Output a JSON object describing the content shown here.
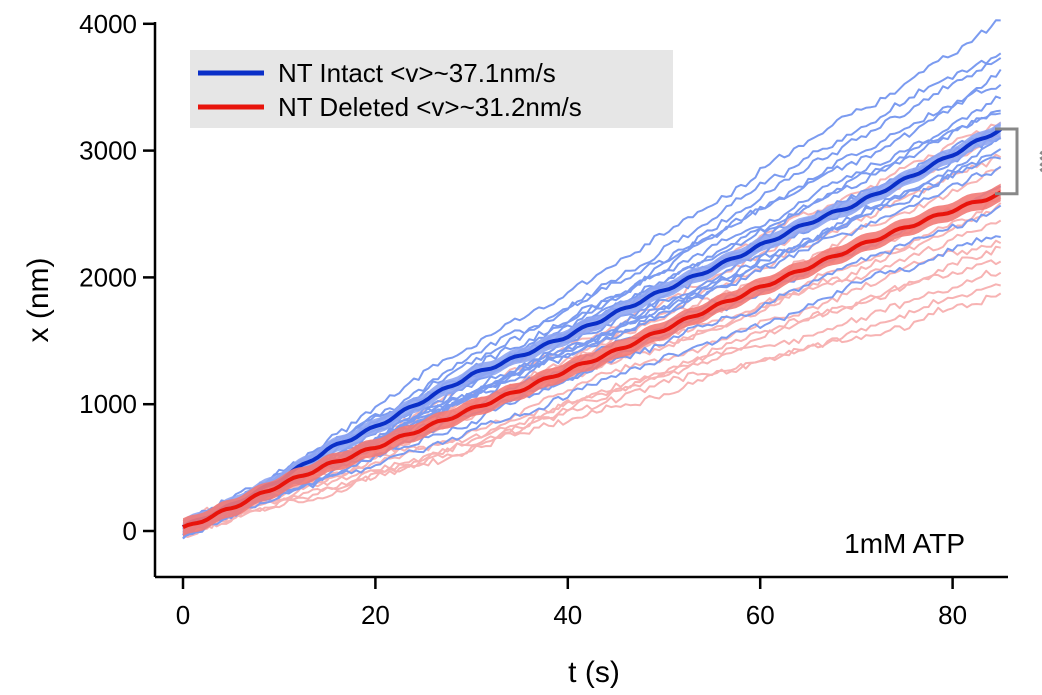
{
  "chart_data": {
    "type": "line",
    "title": "",
    "xlabel": "t (s)",
    "ylabel": "x (nm)",
    "xlim": [
      0,
      85
    ],
    "ylim": [
      -300,
      4000
    ],
    "x_ticks": [
      0,
      20,
      40,
      60,
      80
    ],
    "y_ticks": [
      0,
      1000,
      2000,
      3000,
      4000
    ],
    "x_tick_labels": [
      "0",
      "20",
      "40",
      "60",
      "80"
    ],
    "y_tick_labels": [
      "0",
      "1000",
      "2000",
      "3000",
      "4000"
    ],
    "grid": false,
    "legend_position": "top-left",
    "annotation": "1mM ATP",
    "significance": "**",
    "series": [
      {
        "name": "NT Intact <v>~37.1nm/s",
        "color": "#0a2fc8",
        "trace_color": "#7b9bf0",
        "band_color": "#8fa6f2",
        "velocity_nm_per_s": 37.1,
        "mean_x": [
          0,
          5,
          10,
          15,
          20,
          25,
          30,
          35,
          40,
          45,
          50,
          55,
          60,
          65,
          70,
          75,
          80,
          85
        ],
        "mean_y": [
          30,
          200,
          400,
          640,
          820,
          1030,
          1230,
          1380,
          1540,
          1720,
          1900,
          2070,
          2250,
          2430,
          2580,
          2770,
          2970,
          3170
        ],
        "sem": 60,
        "trace_endpoints": [
          4020,
          3780,
          3700,
          3600,
          3550,
          3450,
          3400,
          3320,
          3250,
          3180,
          3100,
          3050,
          3000,
          2950,
          2850,
          2750,
          2650,
          2550,
          2330
        ]
      },
      {
        "name": "NT Deleted <v>~31.2nm/s",
        "color": "#e8140c",
        "trace_color": "#f7b3b3",
        "band_color": "#f27a76",
        "velocity_nm_per_s": 31.2,
        "mean_x": [
          0,
          5,
          10,
          15,
          20,
          25,
          30,
          35,
          40,
          45,
          50,
          55,
          60,
          65,
          70,
          75,
          80,
          85
        ],
        "mean_y": [
          20,
          180,
          360,
          520,
          660,
          810,
          960,
          1110,
          1270,
          1420,
          1590,
          1760,
          1920,
          2080,
          2240,
          2390,
          2530,
          2660
        ],
        "sem": 70,
        "trace_endpoints": [
          3200,
          3050,
          2950,
          2850,
          2700,
          2600,
          2500,
          2400,
          2300,
          2200,
          2150,
          2050,
          1950,
          1900
        ]
      }
    ]
  }
}
